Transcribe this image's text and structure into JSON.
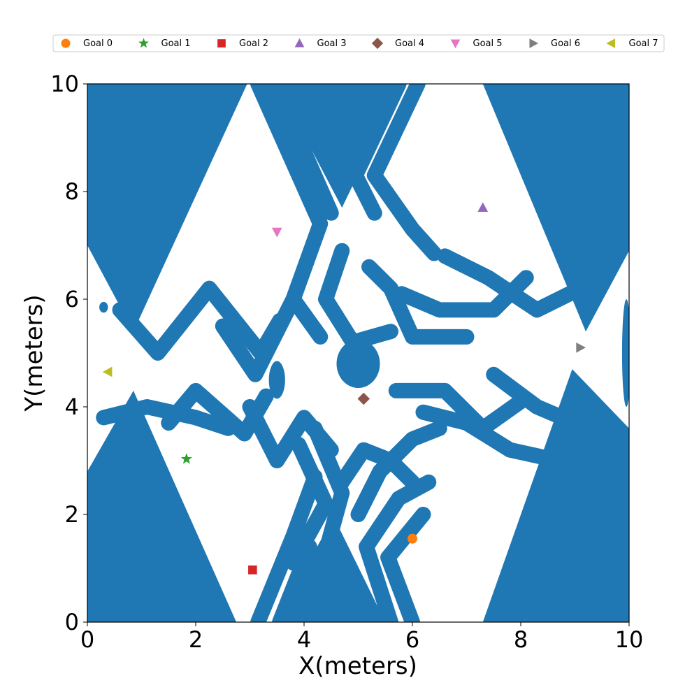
{
  "chart_data": {
    "type": "scatter",
    "xlabel": "X(meters)",
    "ylabel": "Y(meters)",
    "xlim": [
      0,
      10
    ],
    "ylim": [
      0,
      10
    ],
    "xticks": [
      "0",
      "2",
      "4",
      "6",
      "8",
      "10"
    ],
    "yticks": [
      "0",
      "2",
      "4",
      "6",
      "8",
      "10"
    ],
    "grid": false,
    "legend_position": "top",
    "obstacle_color": "#1f77b4",
    "series": [
      {
        "name": "Goal 0",
        "marker": "circle",
        "color": "#ff7f0e",
        "x": 6.0,
        "y": 1.55
      },
      {
        "name": "Goal 1",
        "marker": "star",
        "color": "#2ca02c",
        "x": 1.83,
        "y": 3.03
      },
      {
        "name": "Goal 2",
        "marker": "square",
        "color": "#d62728",
        "x": 3.05,
        "y": 0.97
      },
      {
        "name": "Goal 3",
        "marker": "triangle-up",
        "color": "#9467bd",
        "x": 7.3,
        "y": 7.7
      },
      {
        "name": "Goal 4",
        "marker": "diamond",
        "color": "#8c564b",
        "x": 5.1,
        "y": 4.15
      },
      {
        "name": "Goal 5",
        "marker": "triangle-down",
        "color": "#e377c2",
        "x": 3.5,
        "y": 7.25
      },
      {
        "name": "Goal 6",
        "marker": "triangle-right",
        "color": "#7f7f7f",
        "x": 9.1,
        "y": 5.1
      },
      {
        "name": "Goal 7",
        "marker": "triangle-left",
        "color": "#bcbd22",
        "x": 0.38,
        "y": 4.65
      }
    ],
    "obstacles": {
      "polygons": [
        [
          [
            0,
            10
          ],
          [
            2.95,
            10
          ],
          [
            0.85,
            5.4
          ],
          [
            0,
            7.0
          ]
        ],
        [
          [
            3.5,
            10
          ],
          [
            5.8,
            10
          ],
          [
            4.7,
            7.7
          ]
        ],
        [
          [
            7.3,
            10
          ],
          [
            10,
            10
          ],
          [
            10,
            6.9
          ],
          [
            9.2,
            5.4
          ]
        ],
        [
          [
            0,
            0
          ],
          [
            2.75,
            0
          ],
          [
            0.85,
            4.3
          ],
          [
            0,
            2.8
          ]
        ],
        [
          [
            3.45,
            0
          ],
          [
            5.5,
            0
          ],
          [
            4.55,
            1.95
          ]
        ],
        [
          [
            7.3,
            0
          ],
          [
            10,
            0
          ],
          [
            10,
            3.6
          ],
          [
            8.95,
            4.7
          ]
        ]
      ],
      "paths": [
        [
          [
            3.15,
            10
          ],
          [
            4.3,
            7.4
          ],
          [
            3.8,
            6.0
          ]
        ],
        [
          [
            3.45,
            10
          ],
          [
            4.5,
            7.6
          ]
        ],
        [
          [
            6.1,
            10
          ],
          [
            5.3,
            8.3
          ],
          [
            6.0,
            7.3
          ],
          [
            6.4,
            6.85
          ]
        ],
        [
          [
            5.75,
            10
          ],
          [
            4.95,
            8.3
          ],
          [
            5.3,
            7.6
          ]
        ],
        [
          [
            0.6,
            5.8
          ],
          [
            1.3,
            5.0
          ],
          [
            2.25,
            6.2
          ],
          [
            3.2,
            5.0
          ],
          [
            3.55,
            5.6
          ]
        ],
        [
          [
            2.5,
            5.5
          ],
          [
            3.1,
            4.6
          ],
          [
            3.8,
            6.0
          ],
          [
            4.3,
            5.3
          ]
        ],
        [
          [
            4.7,
            6.9
          ],
          [
            4.4,
            6.0
          ],
          [
            4.9,
            5.2
          ],
          [
            5.6,
            5.4
          ]
        ],
        [
          [
            5.2,
            6.6
          ],
          [
            5.6,
            6.2
          ],
          [
            6.0,
            5.3
          ],
          [
            7.0,
            5.3
          ]
        ],
        [
          [
            5.8,
            6.1
          ],
          [
            6.5,
            5.8
          ],
          [
            7.5,
            5.8
          ],
          [
            8.1,
            6.4
          ]
        ],
        [
          [
            6.6,
            6.8
          ],
          [
            7.4,
            6.4
          ],
          [
            8.3,
            5.8
          ],
          [
            9.1,
            6.2
          ]
        ],
        [
          [
            0.3,
            3.8
          ],
          [
            1.1,
            4.0
          ],
          [
            2.0,
            3.8
          ],
          [
            2.6,
            3.6
          ]
        ],
        [
          [
            1.5,
            3.7
          ],
          [
            2.0,
            4.3
          ],
          [
            2.9,
            3.5
          ],
          [
            3.3,
            4.2
          ]
        ],
        [
          [
            3.0,
            4.0
          ],
          [
            3.5,
            3.0
          ],
          [
            4.0,
            3.8
          ],
          [
            4.5,
            3.2
          ]
        ],
        [
          [
            4.7,
            2.6
          ],
          [
            5.1,
            3.2
          ],
          [
            5.6,
            3.0
          ],
          [
            6.0,
            2.6
          ]
        ],
        [
          [
            5.0,
            2.0
          ],
          [
            5.4,
            2.8
          ],
          [
            6.0,
            3.4
          ],
          [
            6.5,
            3.6
          ]
        ],
        [
          [
            5.7,
            4.3
          ],
          [
            6.6,
            4.3
          ],
          [
            7.3,
            3.6
          ],
          [
            8.0,
            4.1
          ]
        ],
        [
          [
            6.2,
            3.9
          ],
          [
            7.0,
            3.7
          ],
          [
            7.8,
            3.2
          ],
          [
            8.7,
            3.0
          ]
        ],
        [
          [
            7.5,
            4.6
          ],
          [
            8.3,
            4.0
          ],
          [
            9.0,
            3.7
          ],
          [
            9.6,
            3.6
          ]
        ],
        [
          [
            4.4,
            1.3
          ],
          [
            4.7,
            2.4
          ],
          [
            4.2,
            3.6
          ]
        ],
        [
          [
            3.8,
            1.1
          ],
          [
            4.4,
            2.2
          ],
          [
            3.9,
            3.3
          ]
        ],
        [
          [
            5.6,
            0
          ],
          [
            5.15,
            1.4
          ],
          [
            5.75,
            2.3
          ],
          [
            6.3,
            2.6
          ]
        ],
        [
          [
            6.0,
            0
          ],
          [
            5.55,
            1.2
          ],
          [
            6.2,
            2.0
          ]
        ],
        [
          [
            3.15,
            0
          ],
          [
            3.8,
            1.6
          ],
          [
            4.2,
            2.7
          ]
        ],
        [
          [
            3.55,
            0
          ],
          [
            4.1,
            1.4
          ]
        ]
      ],
      "blobs": [
        {
          "x": 5.0,
          "y": 4.8,
          "rx": 0.4,
          "ry": 0.45
        },
        {
          "x": 3.5,
          "y": 4.5,
          "rx": 0.15,
          "ry": 0.35
        },
        {
          "x": 0.3,
          "y": 5.85,
          "rx": 0.08,
          "ry": 0.1
        },
        {
          "x": 9.95,
          "y": 5.0,
          "rx": 0.08,
          "ry": 1.0
        }
      ]
    }
  }
}
